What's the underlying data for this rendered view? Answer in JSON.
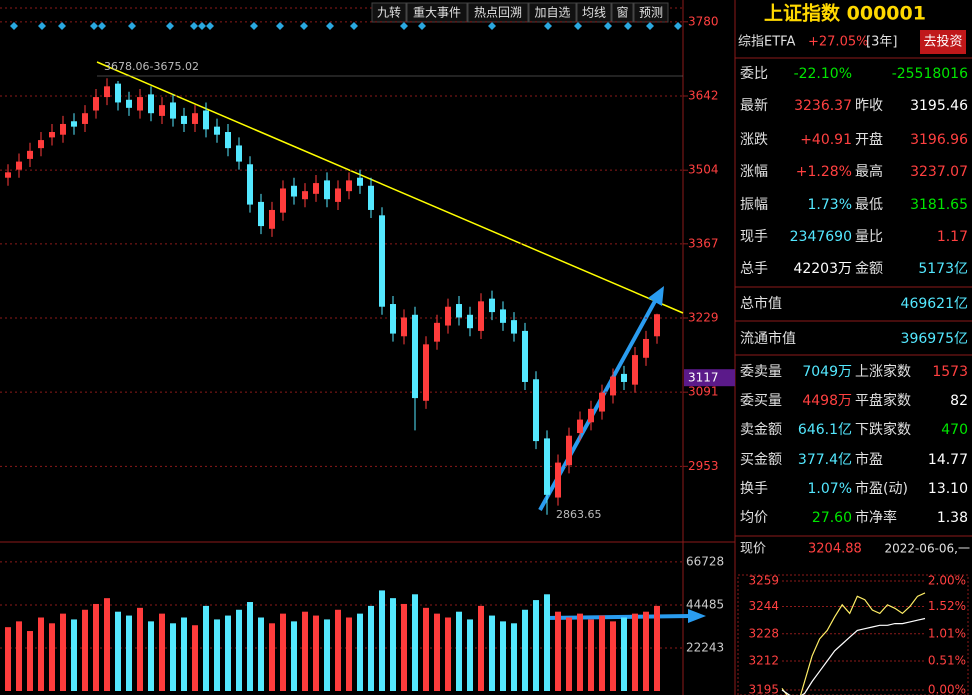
{
  "toolbar": [
    "九转",
    "重大事件",
    "热点回溯",
    "加自选",
    "均线",
    "窗",
    "预测"
  ],
  "chart_data": {
    "type": "candlestick",
    "ylim": [
      2816,
      3802
    ],
    "yticks": [
      3780,
      3642,
      3504,
      3367,
      3229,
      3091,
      2953
    ],
    "current_tick": 3117,
    "up_color": "#ff3c3c",
    "down_color": "#54e8ff",
    "grid": true,
    "annotations": [
      "3678.06-3675.02",
      "2863.65"
    ],
    "open": [
      3490,
      3505,
      3525,
      3545,
      3565,
      3570,
      3595,
      3590,
      3615,
      3640,
      3665,
      3635,
      3615,
      3645,
      3605,
      3630,
      3605,
      3590,
      3615,
      3585,
      3575,
      3550,
      3515,
      3445,
      3395,
      3425,
      3475,
      3450,
      3460,
      3485,
      3445,
      3465,
      3490,
      3475,
      3420,
      3255,
      3195,
      3235,
      3075,
      3185,
      3215,
      3255,
      3235,
      3205,
      3265,
      3245,
      3225,
      3205,
      3115,
      3005,
      2895,
      2955,
      3015,
      3035,
      3055,
      3085,
      3125,
      3105,
      3155,
      3195
    ],
    "close": [
      3500,
      3520,
      3540,
      3560,
      3575,
      3590,
      3585,
      3610,
      3640,
      3660,
      3630,
      3620,
      3640,
      3610,
      3625,
      3600,
      3590,
      3610,
      3580,
      3570,
      3545,
      3520,
      3440,
      3400,
      3430,
      3470,
      3455,
      3465,
      3480,
      3450,
      3470,
      3485,
      3475,
      3430,
      3250,
      3200,
      3230,
      3080,
      3180,
      3220,
      3250,
      3230,
      3210,
      3260,
      3240,
      3220,
      3200,
      3110,
      3000,
      2900,
      2960,
      3010,
      3040,
      3060,
      3090,
      3120,
      3110,
      3160,
      3190,
      3236
    ],
    "low": [
      3475,
      3490,
      3510,
      3530,
      3550,
      3555,
      3570,
      3575,
      3600,
      3625,
      3615,
      3605,
      3600,
      3595,
      3590,
      3585,
      3575,
      3575,
      3565,
      3555,
      3530,
      3505,
      3425,
      3385,
      3380,
      3410,
      3440,
      3435,
      3445,
      3435,
      3430,
      3450,
      3460,
      3415,
      3235,
      3185,
      3180,
      3020,
      3060,
      3170,
      3200,
      3215,
      3195,
      3190,
      3225,
      3205,
      3185,
      3095,
      2985,
      2863,
      2880,
      2940,
      3000,
      3020,
      3040,
      3070,
      3095,
      3090,
      3140,
      3181
    ],
    "high": [
      3515,
      3535,
      3555,
      3575,
      3590,
      3605,
      3610,
      3625,
      3655,
      3675,
      3670,
      3650,
      3655,
      3660,
      3640,
      3645,
      3620,
      3625,
      3630,
      3600,
      3590,
      3565,
      3530,
      3460,
      3445,
      3485,
      3490,
      3480,
      3495,
      3500,
      3485,
      3500,
      3505,
      3490,
      3435,
      3270,
      3245,
      3250,
      3195,
      3235,
      3265,
      3270,
      3250,
      3275,
      3280,
      3260,
      3240,
      3220,
      3130,
      3020,
      2975,
      3025,
      3055,
      3075,
      3105,
      3135,
      3140,
      3175,
      3205,
      3237
    ],
    "volume": {
      "ylim": [
        0,
        76000
      ],
      "yticks": [
        66728,
        44485,
        22243
      ],
      "values": [
        33000,
        36000,
        31000,
        38000,
        35000,
        40000,
        37000,
        42000,
        45000,
        48000,
        41000,
        39000,
        43000,
        36000,
        40000,
        35000,
        38000,
        34000,
        44000,
        37000,
        39000,
        42000,
        46000,
        38000,
        35000,
        40000,
        36000,
        41000,
        39000,
        37000,
        42000,
        38000,
        40000,
        44000,
        52000,
        48000,
        45000,
        50000,
        43000,
        40000,
        38000,
        41000,
        37000,
        44000,
        39000,
        36000,
        35000,
        42000,
        47000,
        50000,
        41000,
        38000,
        40000,
        37000,
        39000,
        36000,
        38000,
        40000,
        41000,
        44000
      ]
    }
  },
  "quote": {
    "title": "上证指数 000001",
    "etf": "综指ETFA",
    "etf_change": "+27.05%",
    "etf_period": "[3年]",
    "button": "去投资",
    "rows": [
      [
        {
          "text": "委比",
          "color": "#e0e0e0"
        },
        {
          "text": "-22.10%",
          "color": "#00e600"
        },
        {
          "text": "-25518016",
          "color": "#00e600"
        }
      ],
      [
        {
          "text": "最新",
          "color": "#e0e0e0"
        },
        {
          "text": "3236.37",
          "color": "#ff4040"
        },
        {
          "text": "昨收",
          "color": "#e0e0e0"
        },
        {
          "text": "3195.46",
          "color": "#ffffff"
        }
      ],
      [
        {
          "text": "涨跌",
          "color": "#e0e0e0"
        },
        {
          "text": "+40.91",
          "color": "#ff4040"
        },
        {
          "text": "开盘",
          "color": "#e0e0e0"
        },
        {
          "text": "3196.96",
          "color": "#ff4040"
        }
      ],
      [
        {
          "text": "涨幅",
          "color": "#e0e0e0"
        },
        {
          "text": "+1.28%",
          "color": "#ff4040"
        },
        {
          "text": "最高",
          "color": "#e0e0e0"
        },
        {
          "text": "3237.07",
          "color": "#ff4040"
        }
      ],
      [
        {
          "text": "振幅",
          "color": "#e0e0e0"
        },
        {
          "text": "1.73%",
          "color": "#54e8ff"
        },
        {
          "text": "最低",
          "color": "#e0e0e0"
        },
        {
          "text": "3181.65",
          "color": "#00e600"
        }
      ],
      [
        {
          "text": "现手",
          "color": "#e0e0e0"
        },
        {
          "text": "2347690",
          "color": "#54e8ff"
        },
        {
          "text": "量比",
          "color": "#e0e0e0"
        },
        {
          "text": "1.17",
          "color": "#ff4040"
        }
      ],
      [
        {
          "text": "总手",
          "color": "#e0e0e0"
        },
        {
          "text": "42203万",
          "color": "#ffffff"
        },
        {
          "text": "金额",
          "color": "#e0e0e0"
        },
        {
          "text": "5173亿",
          "color": "#54e8ff"
        }
      ],
      [
        {
          "text": "总市值",
          "color": "#e0e0e0"
        },
        {
          "text": "469621亿",
          "color": "#54e8ff"
        }
      ],
      [
        {
          "text": "流通市值",
          "color": "#e0e0e0"
        },
        {
          "text": "396975亿",
          "color": "#54e8ff"
        }
      ],
      [
        {
          "text": "委卖量",
          "color": "#e0e0e0"
        },
        {
          "text": "7049万",
          "color": "#54e8ff"
        },
        {
          "text": "上涨家数",
          "color": "#e0e0e0"
        },
        {
          "text": "1573",
          "color": "#ff4040"
        }
      ],
      [
        {
          "text": "委买量",
          "color": "#e0e0e0"
        },
        {
          "text": "4498万",
          "color": "#ff4040"
        },
        {
          "text": "平盘家数",
          "color": "#e0e0e0"
        },
        {
          "text": "82",
          "color": "#ffffff"
        }
      ],
      [
        {
          "text": "卖金额",
          "color": "#e0e0e0"
        },
        {
          "text": "646.1亿",
          "color": "#54e8ff"
        },
        {
          "text": "下跌家数",
          "color": "#e0e0e0"
        },
        {
          "text": "470",
          "color": "#00e600"
        }
      ],
      [
        {
          "text": "买金额",
          "color": "#e0e0e0"
        },
        {
          "text": "377.4亿",
          "color": "#54e8ff"
        },
        {
          "text": "市盈",
          "color": "#e0e0e0"
        },
        {
          "text": "14.77",
          "color": "#ffffff"
        }
      ],
      [
        {
          "text": "换手",
          "color": "#e0e0e0"
        },
        {
          "text": "1.07%",
          "color": "#54e8ff"
        },
        {
          "text": "市盈(动)",
          "color": "#e0e0e0"
        },
        {
          "text": "13.10",
          "color": "#ffffff"
        }
      ],
      [
        {
          "text": "均价",
          "color": "#e0e0e0"
        },
        {
          "text": "27.60",
          "color": "#00e600"
        },
        {
          "text": "市净率",
          "color": "#e0e0e0"
        },
        {
          "text": "1.38",
          "color": "#ffffff"
        }
      ]
    ],
    "price_label": "现价",
    "price": "3204.88",
    "date": "2022-06-06,一"
  },
  "mini_chart": {
    "type": "line",
    "ylim": [
      3195,
      3259
    ],
    "yticks": [
      3259,
      3244,
      3228,
      3212,
      3195
    ],
    "right_ticks": [
      "2.00%",
      "1.52%",
      "1.01%",
      "0.51%",
      "0.00%"
    ],
    "series": [
      {
        "color": "#ffee66",
        "values": [
          3196,
          3190,
          3185,
          3200,
          3215,
          3225,
          3230,
          3238,
          3245,
          3240,
          3250,
          3248,
          3242,
          3240,
          3245,
          3243,
          3240,
          3244,
          3250,
          3252
        ]
      },
      {
        "color": "#ffffff",
        "values": [
          3195,
          3192,
          3190,
          3193,
          3200,
          3206,
          3212,
          3218,
          3222,
          3226,
          3230,
          3231,
          3232,
          3233,
          3233,
          3234,
          3234,
          3235,
          3236,
          3237
        ]
      }
    ]
  }
}
